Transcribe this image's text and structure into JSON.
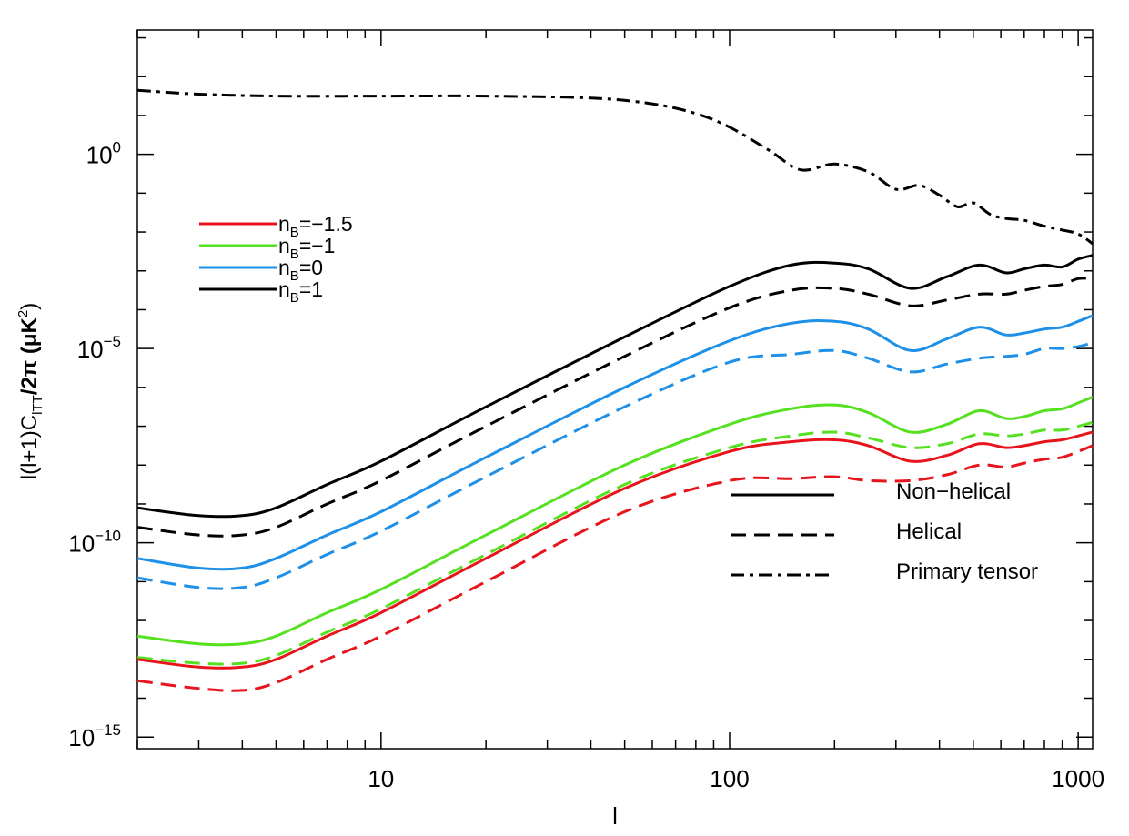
{
  "chart_data": {
    "type": "line",
    "title": "",
    "xlabel": "l",
    "ylabel": {
      "prefix": "l(l+1)C",
      "subscript": "lTT",
      "suffix": "/2π (μK",
      "sup": "2",
      "close": ")"
    },
    "xscale": "log",
    "yscale": "log",
    "xlim": [
      2,
      1100
    ],
    "ylim_log10": [
      -15.3,
      3.2
    ],
    "x_ticks": [
      {
        "value": 10,
        "label": "10"
      },
      {
        "value": 100,
        "label": "100"
      },
      {
        "value": 1000,
        "label": "1000"
      }
    ],
    "y_ticks": [
      {
        "exp": 0,
        "base": "10",
        "sup": "0"
      },
      {
        "exp": -5,
        "base": "10",
        "sup": "−5"
      },
      {
        "exp": -10,
        "base": "10",
        "sup": "−10"
      },
      {
        "exp": -15,
        "base": "10",
        "sup": "−15"
      }
    ],
    "x_knots": [
      2,
      3,
      4,
      5,
      7,
      10,
      20,
      50,
      100,
      150,
      200,
      250,
      330,
      420,
      520,
      620,
      700,
      800,
      900,
      1000,
      1100
    ],
    "series": [
      {
        "name": "primary-tensor",
        "color": "#000000",
        "style": "dashdot",
        "x": [
          2,
          3,
          5,
          10,
          20,
          40,
          60,
          80,
          100,
          130,
          160,
          200,
          250,
          300,
          350,
          400,
          450,
          500,
          560,
          620,
          700,
          800,
          900,
          1000,
          1100
        ],
        "y_log10": [
          1.65,
          1.55,
          1.5,
          1.5,
          1.5,
          1.45,
          1.3,
          1.05,
          0.7,
          0.1,
          -0.4,
          -0.25,
          -0.45,
          -0.9,
          -0.8,
          -1.05,
          -1.35,
          -1.25,
          -1.55,
          -1.65,
          -1.7,
          -1.85,
          -1.95,
          -2.05,
          -2.3
        ]
      },
      {
        "name": "nB=1 non-helical",
        "color": "#000000",
        "style": "solid",
        "y_log10": [
          -9.1,
          -9.3,
          -9.3,
          -9.1,
          -8.5,
          -7.9,
          -6.5,
          -4.7,
          -3.4,
          -2.85,
          -2.8,
          -2.95,
          -3.45,
          -3.15,
          -2.85,
          -3.05,
          -2.95,
          -2.85,
          -2.9,
          -2.7,
          -2.6
        ]
      },
      {
        "name": "nB=1 helical",
        "color": "#000000",
        "style": "dashed",
        "y_log10": [
          -9.6,
          -9.8,
          -9.8,
          -9.6,
          -9.0,
          -8.4,
          -7.0,
          -5.2,
          -3.95,
          -3.5,
          -3.45,
          -3.6,
          -3.9,
          -3.75,
          -3.6,
          -3.6,
          -3.5,
          -3.4,
          -3.35,
          -3.2,
          -3.2
        ]
      },
      {
        "name": "nB=0 non-helical",
        "color": "#1E90E8",
        "style": "solid",
        "y_log10": [
          -10.4,
          -10.65,
          -10.65,
          -10.4,
          -9.8,
          -9.2,
          -7.8,
          -6.0,
          -4.8,
          -4.35,
          -4.3,
          -4.5,
          -5.05,
          -4.75,
          -4.45,
          -4.65,
          -4.6,
          -4.5,
          -4.45,
          -4.3,
          -4.15
        ]
      },
      {
        "name": "nB=0 helical",
        "color": "#1E90E8",
        "style": "dashed",
        "y_log10": [
          -10.9,
          -11.15,
          -11.15,
          -10.9,
          -10.3,
          -9.7,
          -8.3,
          -6.5,
          -5.35,
          -5.15,
          -5.05,
          -5.25,
          -5.6,
          -5.4,
          -5.25,
          -5.2,
          -5.15,
          -5.0,
          -5.0,
          -4.95,
          -4.85
        ]
      },
      {
        "name": "nB=-1 non-helical",
        "color": "#55E020",
        "style": "solid",
        "y_log10": [
          -12.4,
          -12.6,
          -12.6,
          -12.4,
          -11.8,
          -11.2,
          -9.8,
          -8.0,
          -6.95,
          -6.55,
          -6.45,
          -6.65,
          -7.15,
          -6.95,
          -6.6,
          -6.8,
          -6.75,
          -6.6,
          -6.55,
          -6.4,
          -6.25
        ]
      },
      {
        "name": "nB=-1 helical",
        "color": "#55E020",
        "style": "dashed",
        "y_log10": [
          -12.95,
          -13.1,
          -13.1,
          -12.9,
          -12.3,
          -11.7,
          -10.3,
          -8.5,
          -7.55,
          -7.25,
          -7.15,
          -7.3,
          -7.55,
          -7.45,
          -7.2,
          -7.25,
          -7.2,
          -7.1,
          -7.1,
          -7.0,
          -6.9
        ]
      },
      {
        "name": "nB=-1.5 non-helical",
        "color": "#E8141C",
        "style": "solid",
        "y_log10": [
          -13.0,
          -13.2,
          -13.2,
          -13.0,
          -12.4,
          -11.8,
          -10.4,
          -8.6,
          -7.65,
          -7.4,
          -7.35,
          -7.5,
          -7.9,
          -7.75,
          -7.45,
          -7.55,
          -7.5,
          -7.4,
          -7.35,
          -7.25,
          -7.15
        ]
      },
      {
        "name": "nB=-1.5 helical",
        "color": "#E8141C",
        "style": "dashed",
        "y_log10": [
          -13.55,
          -13.75,
          -13.8,
          -13.6,
          -13.0,
          -12.4,
          -11.0,
          -9.2,
          -8.4,
          -8.35,
          -8.3,
          -8.4,
          -8.4,
          -8.25,
          -8.0,
          -8.05,
          -7.95,
          -7.85,
          -7.8,
          -7.65,
          -7.5
        ]
      }
    ],
    "legend_colors": [
      {
        "sub": "B",
        "value": "=−1.5",
        "color": "#E8141C"
      },
      {
        "sub": "B",
        "value": "=−1",
        "color": "#55E020"
      },
      {
        "sub": "B",
        "value": "=0",
        "color": "#1E90E8"
      },
      {
        "sub": "B",
        "value": "=1",
        "color": "#000000"
      }
    ],
    "legend_prefix": "n",
    "legend_styles": [
      {
        "label": "Non−helical",
        "style": "solid"
      },
      {
        "label": "Helical",
        "style": "dashed"
      },
      {
        "label": "Primary tensor",
        "style": "dashdot"
      }
    ]
  }
}
